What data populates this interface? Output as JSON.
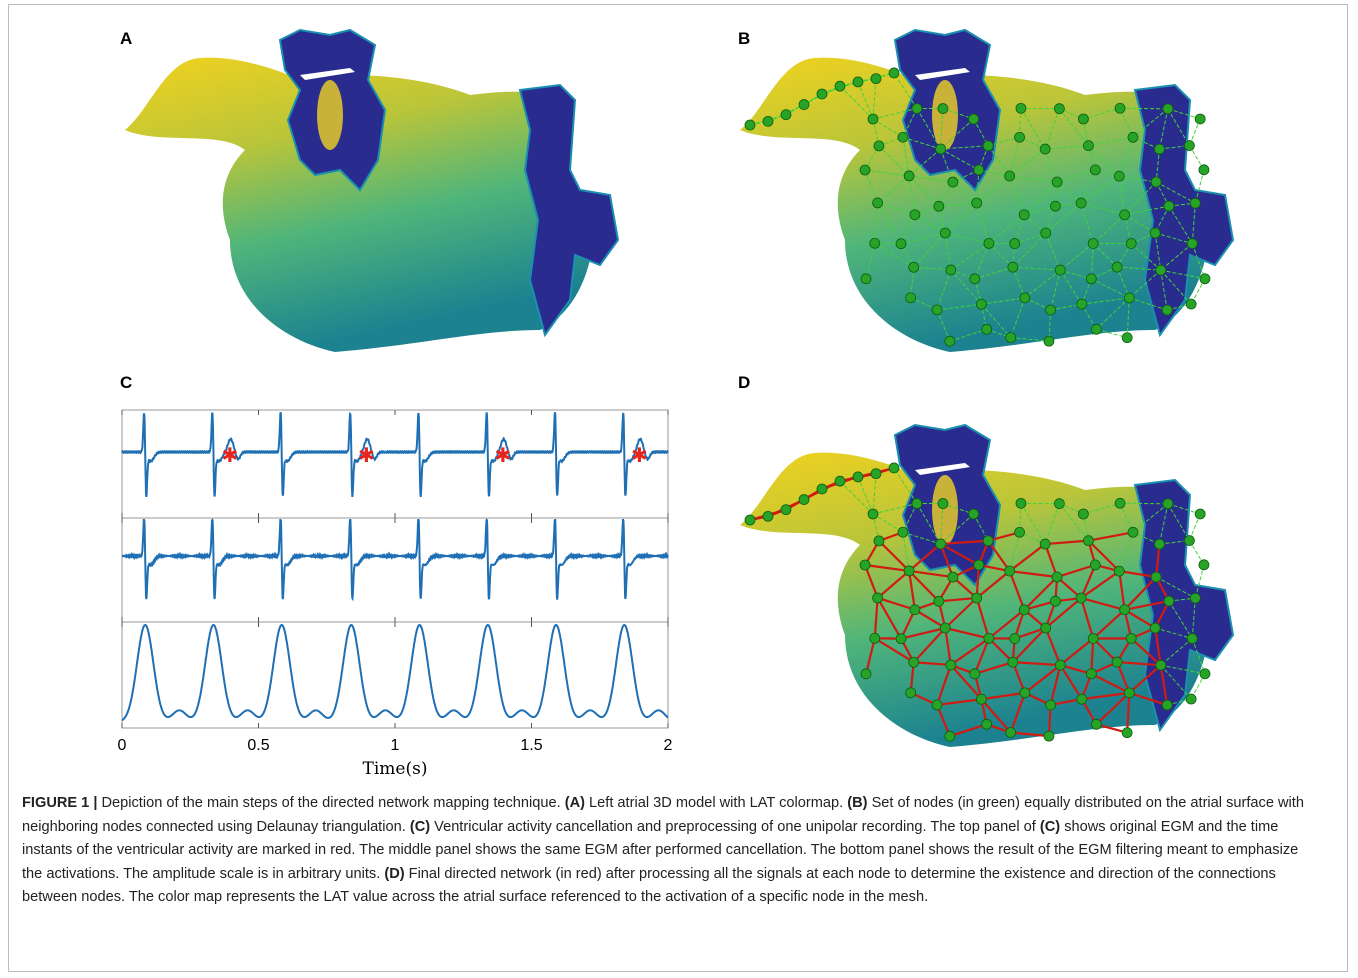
{
  "panels": [
    {
      "label": "A"
    },
    {
      "label": "B"
    },
    {
      "label": "C"
    },
    {
      "label": "D"
    }
  ],
  "chart_data": {
    "type": "egm",
    "xlabel": "Time(s)",
    "xlim": [
      0,
      2
    ],
    "xticks": [
      0,
      0.5,
      1,
      1.5,
      2
    ],
    "activations": [
      0.085,
      0.335,
      0.585,
      0.84,
      1.09,
      1.34,
      1.59,
      1.84
    ],
    "ventricular_markers": [
      0.41,
      0.91,
      1.41,
      1.91
    ],
    "marker_color": "#e8231c",
    "line_color": "#1f6fb5"
  },
  "caption": [
    {
      "text": "FIGURE 1 | ",
      "bold": true
    },
    {
      "text": "Depiction of the main steps of the directed network mapping technique. ",
      "bold": false
    },
    {
      "text": "(A)",
      "bold": true
    },
    {
      "text": " Left atrial 3D model with LAT colormap. ",
      "bold": false
    },
    {
      "text": "(B)",
      "bold": true
    },
    {
      "text": " Set of nodes (in green) equally distributed on the atrial surface with neighboring nodes connected using Delaunay triangulation. ",
      "bold": false
    },
    {
      "text": "(C)",
      "bold": true
    },
    {
      "text": " Ventricular activity cancellation and preprocessing of one unipolar recording. The top panel of ",
      "bold": false
    },
    {
      "text": "(C)",
      "bold": true
    },
    {
      "text": " shows original EGM and the time instants of the ventricular activity are marked in red. The middle panel shows the same EGM after performed cancellation. The bottom panel shows the result of the EGM filtering meant to emphasize the activations. The amplitude scale is in arbitrary units. ",
      "bold": false
    },
    {
      "text": "(D)",
      "bold": true
    },
    {
      "text": " Final directed network (in red) after processing all the signals at each node to determine the existence and direction of the connections between nodes. The color map represents the LAT value across the atrial surface referenced to the activation of a specific node in the mesh.",
      "bold": false
    }
  ]
}
